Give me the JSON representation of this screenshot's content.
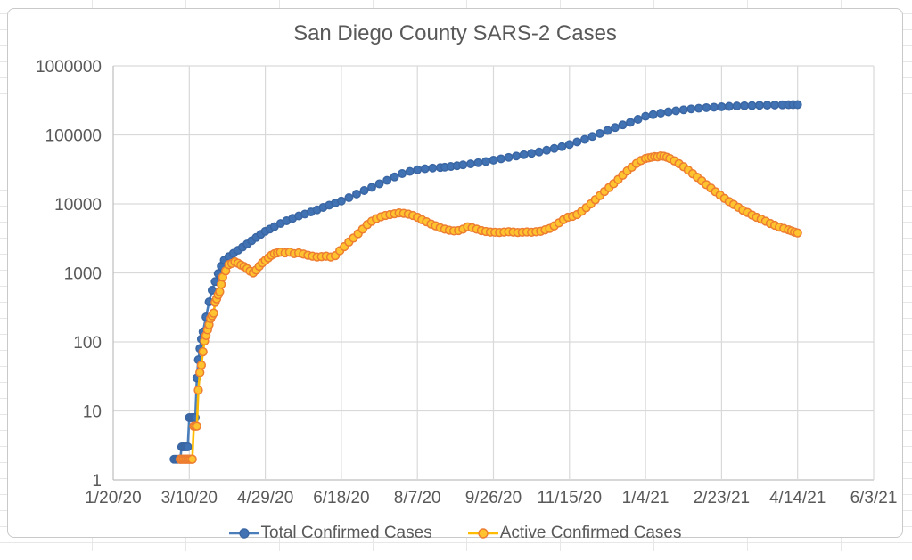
{
  "title": "San Diego County SARS-2 Cases",
  "legend": {
    "position": "bottom"
  },
  "chart_data": {
    "type": "line",
    "title": "San Diego County SARS-2 Cases",
    "grid": true,
    "legend_position": "bottom",
    "x_axis": {
      "unit": "date",
      "range_days": [
        0,
        500
      ],
      "ticks": [
        {
          "day": 0,
          "label": "1/20/20"
        },
        {
          "day": 50,
          "label": "3/10/20"
        },
        {
          "day": 100,
          "label": "4/29/20"
        },
        {
          "day": 150,
          "label": "6/18/20"
        },
        {
          "day": 200,
          "label": "8/7/20"
        },
        {
          "day": 250,
          "label": "9/26/20"
        },
        {
          "day": 300,
          "label": "11/15/20"
        },
        {
          "day": 350,
          "label": "1/4/21"
        },
        {
          "day": 400,
          "label": "2/23/21"
        },
        {
          "day": 450,
          "label": "4/14/21"
        },
        {
          "day": 500,
          "label": "6/3/21"
        }
      ]
    },
    "y_axis": {
      "scale": "log",
      "range": [
        1,
        1000000
      ],
      "ticks": [
        {
          "value": 1,
          "label": "1"
        },
        {
          "value": 10,
          "label": "10"
        },
        {
          "value": 100,
          "label": "100"
        },
        {
          "value": 1000,
          "label": "1000"
        },
        {
          "value": 10000,
          "label": "10000"
        },
        {
          "value": 100000,
          "label": "100000"
        },
        {
          "value": 1000000,
          "label": "1000000"
        }
      ]
    },
    "colors": {
      "text": "#595959",
      "gridline": "#d9d9d9",
      "axis_line": "#bfbfbf"
    },
    "series": [
      {
        "name": "Total Confirmed Cases",
        "line_color": "#4a7ebb",
        "marker_fill": "#4173b4",
        "marker_stroke": "#3a66a3",
        "points": [
          [
            40,
            2
          ],
          [
            41,
            2
          ],
          [
            42,
            2
          ],
          [
            43,
            2
          ],
          [
            44,
            2
          ],
          [
            45,
            3
          ],
          [
            46,
            3
          ],
          [
            47,
            3
          ],
          [
            48,
            3
          ],
          [
            49,
            3
          ],
          [
            50,
            8
          ],
          [
            51,
            8
          ],
          [
            52,
            8
          ],
          [
            53,
            8
          ],
          [
            54,
            8
          ],
          [
            55,
            30
          ],
          [
            56,
            55
          ],
          [
            57,
            80
          ],
          [
            58,
            110
          ],
          [
            59,
            140
          ],
          [
            61,
            230
          ],
          [
            63,
            380
          ],
          [
            65,
            560
          ],
          [
            67,
            750
          ],
          [
            69,
            980
          ],
          [
            71,
            1250
          ],
          [
            73,
            1530
          ],
          [
            76,
            1720
          ],
          [
            79,
            1920
          ],
          [
            82,
            2130
          ],
          [
            85,
            2360
          ],
          [
            88,
            2620
          ],
          [
            91,
            2920
          ],
          [
            94,
            3260
          ],
          [
            97,
            3620
          ],
          [
            100,
            4000
          ],
          [
            103,
            4320
          ],
          [
            106,
            4680
          ],
          [
            110,
            5180
          ],
          [
            114,
            5680
          ],
          [
            118,
            6180
          ],
          [
            122,
            6680
          ],
          [
            126,
            7120
          ],
          [
            130,
            7620
          ],
          [
            134,
            8200
          ],
          [
            138,
            8880
          ],
          [
            142,
            9580
          ],
          [
            146,
            10300
          ],
          [
            150,
            11000
          ],
          [
            155,
            12300
          ],
          [
            160,
            13900
          ],
          [
            165,
            15600
          ],
          [
            170,
            17400
          ],
          [
            175,
            19500
          ],
          [
            180,
            21900
          ],
          [
            185,
            24600
          ],
          [
            190,
            27500
          ],
          [
            195,
            29500
          ],
          [
            200,
            31200
          ],
          [
            205,
            32200
          ],
          [
            210,
            33000
          ],
          [
            215,
            33600
          ],
          [
            218,
            34000
          ],
          [
            222,
            34800
          ],
          [
            226,
            35700
          ],
          [
            230,
            36700
          ],
          [
            235,
            38000
          ],
          [
            240,
            39400
          ],
          [
            245,
            41100
          ],
          [
            250,
            43000
          ],
          [
            255,
            45000
          ],
          [
            260,
            47100
          ],
          [
            265,
            49300
          ],
          [
            270,
            51600
          ],
          [
            275,
            54000
          ],
          [
            280,
            56600
          ],
          [
            285,
            60000
          ],
          [
            290,
            63600
          ],
          [
            295,
            67600
          ],
          [
            300,
            72600
          ],
          [
            305,
            79000
          ],
          [
            310,
            86000
          ],
          [
            315,
            95000
          ],
          [
            320,
            105000
          ],
          [
            325,
            116000
          ],
          [
            330,
            128000
          ],
          [
            335,
            140000
          ],
          [
            340,
            152000
          ],
          [
            345,
            168000
          ],
          [
            350,
            186000
          ],
          [
            355,
            197000
          ],
          [
            360,
            207000
          ],
          [
            365,
            216000
          ],
          [
            370,
            224000
          ],
          [
            375,
            231000
          ],
          [
            380,
            238000
          ],
          [
            385,
            243000
          ],
          [
            390,
            248000
          ],
          [
            395,
            252000
          ],
          [
            400,
            256000
          ],
          [
            405,
            259000
          ],
          [
            410,
            262000
          ],
          [
            415,
            264000
          ],
          [
            420,
            266000
          ],
          [
            425,
            268000
          ],
          [
            430,
            270000
          ],
          [
            435,
            271500
          ],
          [
            440,
            273000
          ],
          [
            444,
            274000
          ],
          [
            447,
            274500
          ],
          [
            450,
            275000
          ]
        ]
      },
      {
        "name": "Active Confirmed Cases",
        "line_color": "#ffbb00",
        "marker_fill": "#fec32e",
        "marker_stroke": "#ed7d31",
        "points": [
          [
            44,
            2
          ],
          [
            45,
            2
          ],
          [
            46,
            2
          ],
          [
            47,
            2
          ],
          [
            48,
            2
          ],
          [
            49,
            2
          ],
          [
            50,
            2
          ],
          [
            51,
            2
          ],
          [
            52,
            2
          ],
          [
            53,
            6
          ],
          [
            54,
            6
          ],
          [
            55,
            6
          ],
          [
            56,
            20
          ],
          [
            57,
            36
          ],
          [
            58,
            46
          ],
          [
            59,
            72
          ],
          [
            60,
            103
          ],
          [
            61,
            124
          ],
          [
            62,
            150
          ],
          [
            63,
            177
          ],
          [
            64,
            218
          ],
          [
            65,
            240
          ],
          [
            66,
            261
          ],
          [
            67,
            374
          ],
          [
            68,
            420
          ],
          [
            69,
            480
          ],
          [
            70,
            535
          ],
          [
            71,
            682
          ],
          [
            72,
            866
          ],
          [
            74,
            1070
          ],
          [
            76,
            1320
          ],
          [
            78,
            1370
          ],
          [
            80,
            1450
          ],
          [
            82,
            1380
          ],
          [
            84,
            1300
          ],
          [
            86,
            1240
          ],
          [
            88,
            1150
          ],
          [
            90,
            1060
          ],
          [
            92,
            1000
          ],
          [
            94,
            1100
          ],
          [
            96,
            1250
          ],
          [
            98,
            1400
          ],
          [
            100,
            1520
          ],
          [
            102,
            1650
          ],
          [
            104,
            1800
          ],
          [
            106,
            1900
          ],
          [
            108,
            1950
          ],
          [
            110,
            2000
          ],
          [
            113,
            1950
          ],
          [
            116,
            2000
          ],
          [
            119,
            1900
          ],
          [
            122,
            1950
          ],
          [
            125,
            1880
          ],
          [
            128,
            1800
          ],
          [
            131,
            1750
          ],
          [
            134,
            1700
          ],
          [
            137,
            1720
          ],
          [
            140,
            1750
          ],
          [
            143,
            1700
          ],
          [
            146,
            1780
          ],
          [
            149,
            2100
          ],
          [
            152,
            2400
          ],
          [
            155,
            2800
          ],
          [
            158,
            3200
          ],
          [
            161,
            3700
          ],
          [
            164,
            4300
          ],
          [
            167,
            5000
          ],
          [
            170,
            5600
          ],
          [
            173,
            6100
          ],
          [
            176,
            6500
          ],
          [
            179,
            6800
          ],
          [
            182,
            7000
          ],
          [
            185,
            7200
          ],
          [
            188,
            7400
          ],
          [
            191,
            7300
          ],
          [
            194,
            7100
          ],
          [
            197,
            6800
          ],
          [
            200,
            6400
          ],
          [
            203,
            5900
          ],
          [
            206,
            5500
          ],
          [
            209,
            5100
          ],
          [
            212,
            4800
          ],
          [
            215,
            4500
          ],
          [
            218,
            4300
          ],
          [
            221,
            4150
          ],
          [
            224,
            4050
          ],
          [
            227,
            4100
          ],
          [
            230,
            4300
          ],
          [
            233,
            4650
          ],
          [
            236,
            4500
          ],
          [
            239,
            4300
          ],
          [
            242,
            4100
          ],
          [
            245,
            3980
          ],
          [
            248,
            3900
          ],
          [
            251,
            3880
          ],
          [
            254,
            3850
          ],
          [
            257,
            3900
          ],
          [
            260,
            3950
          ],
          [
            263,
            3900
          ],
          [
            266,
            3850
          ],
          [
            269,
            3880
          ],
          [
            272,
            3920
          ],
          [
            275,
            3880
          ],
          [
            278,
            3940
          ],
          [
            281,
            4000
          ],
          [
            284,
            4200
          ],
          [
            287,
            4400
          ],
          [
            290,
            4800
          ],
          [
            293,
            5300
          ],
          [
            296,
            5900
          ],
          [
            299,
            6400
          ],
          [
            302,
            6600
          ],
          [
            305,
            7000
          ],
          [
            308,
            7800
          ],
          [
            311,
            8800
          ],
          [
            314,
            10000
          ],
          [
            317,
            11500
          ],
          [
            320,
            13200
          ],
          [
            323,
            15100
          ],
          [
            326,
            17200
          ],
          [
            329,
            19600
          ],
          [
            332,
            22500
          ],
          [
            335,
            26000
          ],
          [
            338,
            30000
          ],
          [
            341,
            34000
          ],
          [
            344,
            38500
          ],
          [
            347,
            42500
          ],
          [
            350,
            45500
          ],
          [
            352,
            46500
          ],
          [
            354,
            47500
          ],
          [
            356,
            48500
          ],
          [
            358,
            48000
          ],
          [
            360,
            49500
          ],
          [
            362,
            49000
          ],
          [
            364,
            47500
          ],
          [
            366,
            45500
          ],
          [
            369,
            42000
          ],
          [
            372,
            38200
          ],
          [
            375,
            34500
          ],
          [
            378,
            30800
          ],
          [
            381,
            27300
          ],
          [
            384,
            24300
          ],
          [
            387,
            21500
          ],
          [
            390,
            19000
          ],
          [
            393,
            16900
          ],
          [
            396,
            15000
          ],
          [
            399,
            13400
          ],
          [
            402,
            12000
          ],
          [
            405,
            10800
          ],
          [
            408,
            9800
          ],
          [
            411,
            8900
          ],
          [
            414,
            8100
          ],
          [
            417,
            7500
          ],
          [
            420,
            6900
          ],
          [
            423,
            6400
          ],
          [
            426,
            6000
          ],
          [
            429,
            5600
          ],
          [
            432,
            5200
          ],
          [
            435,
            4900
          ],
          [
            438,
            4600
          ],
          [
            441,
            4400
          ],
          [
            444,
            4200
          ],
          [
            446,
            4050
          ],
          [
            448,
            3900
          ],
          [
            450,
            3800
          ]
        ]
      }
    ]
  }
}
